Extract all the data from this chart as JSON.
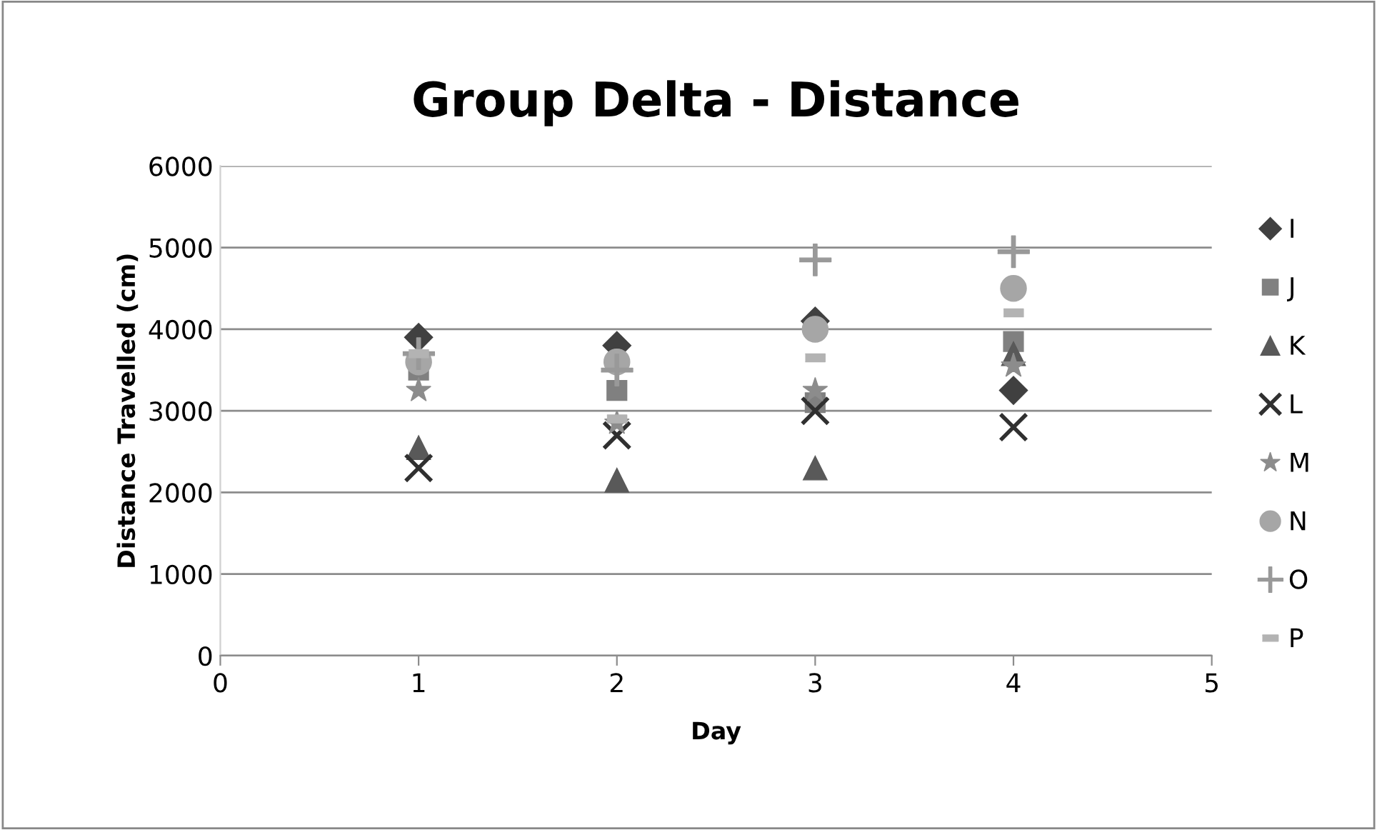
{
  "chart_data": {
    "type": "scatter",
    "title": "Group Delta - Distance",
    "xlabel": "Day",
    "ylabel": "Distance Travelled (cm)",
    "xlim": [
      0,
      5
    ],
    "xticks": [
      0,
      1,
      2,
      3,
      4,
      5
    ],
    "ylim": [
      0,
      6000
    ],
    "yticks": [
      0,
      1000,
      2000,
      3000,
      4000,
      5000,
      6000
    ],
    "grid": "y",
    "legend": "right",
    "series": [
      {
        "name": "I",
        "color": "#404040",
        "marker": "diamond",
        "x": [
          1,
          2,
          3,
          4
        ],
        "values": [
          3900,
          3800,
          4100,
          3250
        ]
      },
      {
        "name": "J",
        "color": "#808080",
        "marker": "square",
        "x": [
          1,
          2,
          3,
          4
        ],
        "values": [
          3500,
          3250,
          3100,
          3850
        ]
      },
      {
        "name": "K",
        "color": "#595959",
        "marker": "triangle",
        "x": [
          1,
          2,
          3,
          4
        ],
        "values": [
          2550,
          2150,
          2300,
          3700
        ]
      },
      {
        "name": "L",
        "color": "#303030",
        "marker": "cross",
        "x": [
          1,
          2,
          3,
          4
        ],
        "values": [
          2300,
          2700,
          3000,
          2800
        ]
      },
      {
        "name": "M",
        "color": "#8c8c8c",
        "marker": "star",
        "x": [
          1,
          2,
          3,
          4
        ],
        "values": [
          3250,
          2850,
          3250,
          3550
        ]
      },
      {
        "name": "N",
        "color": "#a6a6a6",
        "marker": "circle",
        "x": [
          1,
          2,
          3,
          4
        ],
        "values": [
          3600,
          3600,
          4000,
          4500
        ]
      },
      {
        "name": "O",
        "color": "#999999",
        "marker": "plus",
        "x": [
          1,
          2,
          3,
          4
        ],
        "values": [
          3700,
          3500,
          4850,
          4950
        ]
      },
      {
        "name": "P",
        "color": "#b3b3b3",
        "x": [
          1,
          2,
          3,
          4
        ],
        "values": [
          3700,
          2900,
          3650,
          4200
        ]
      }
    ]
  }
}
